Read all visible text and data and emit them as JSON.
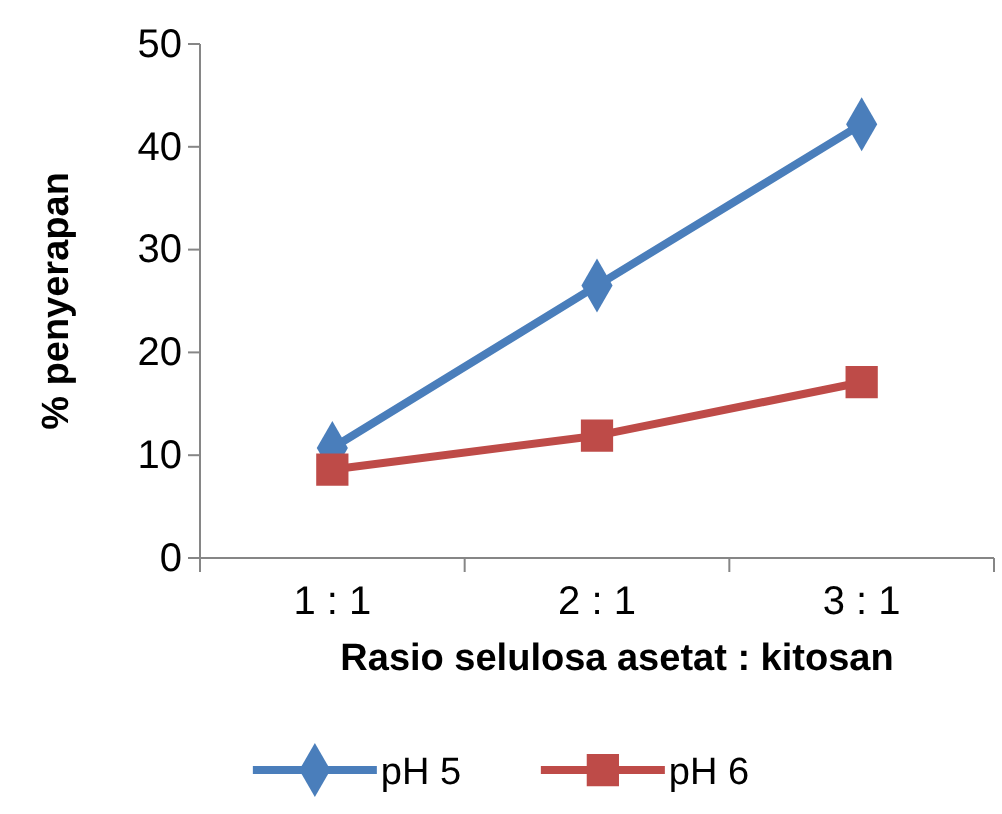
{
  "chart_data": {
    "type": "line",
    "xlabel": "Rasio selulosa asetat : kitosan",
    "ylabel": "% penyerapan",
    "categories": [
      "1 : 1",
      "2 : 1",
      "3 : 1"
    ],
    "series": [
      {
        "name": "pH 5",
        "color": "#4a7ebb",
        "marker": "diamond",
        "values": [
          10.7,
          26.5,
          42.2
        ]
      },
      {
        "name": "pH 6",
        "color": "#be4b48",
        "marker": "square",
        "values": [
          8.6,
          11.9,
          17.1
        ]
      }
    ],
    "ylim": [
      0,
      50
    ],
    "yticks": [
      0,
      10,
      20,
      30,
      40,
      50
    ],
    "grid": false,
    "legend": "bottom",
    "line_style": "solid"
  }
}
